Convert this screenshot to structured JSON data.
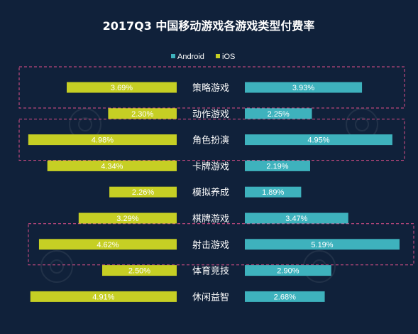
{
  "chart_data": {
    "type": "bar",
    "title": "2017Q3 中国移动游戏各游戏类型付费率",
    "categories": [
      "策略游戏",
      "动作游戏",
      "角色扮演",
      "卡牌游戏",
      "模拟养成",
      "棋牌游戏",
      "射击游戏",
      "体育竞技",
      "休闲益智"
    ],
    "series": [
      {
        "name": "Android",
        "values": [
          3.93,
          2.25,
          4.95,
          2.19,
          1.89,
          3.47,
          5.19,
          2.9,
          2.68
        ],
        "labels": [
          "3.93%",
          "2.25%",
          "4.95%",
          "2.19%",
          "1.89%",
          "3.47%",
          "5.19%",
          "2.90%",
          "2.68%"
        ],
        "color": "#3eb2bd",
        "side": "right"
      },
      {
        "name": "iOS",
        "values": [
          3.69,
          2.3,
          4.98,
          4.34,
          2.26,
          3.29,
          4.62,
          2.5,
          4.91
        ],
        "labels": [
          "3.69%",
          "2.30%",
          "4.98%",
          "4.34%",
          "2.26%",
          "3.29%",
          "4.62%",
          "2.50%",
          "4.91%"
        ],
        "color": "#c6cf24",
        "side": "left"
      }
    ],
    "legend_position": "top-right",
    "highlighted_categories": [
      "策略游戏",
      "角色扮演",
      "射击游戏"
    ],
    "colors": {
      "background": "#10213a",
      "highlight_border": "#e0508a",
      "text": "#ffffff"
    }
  }
}
